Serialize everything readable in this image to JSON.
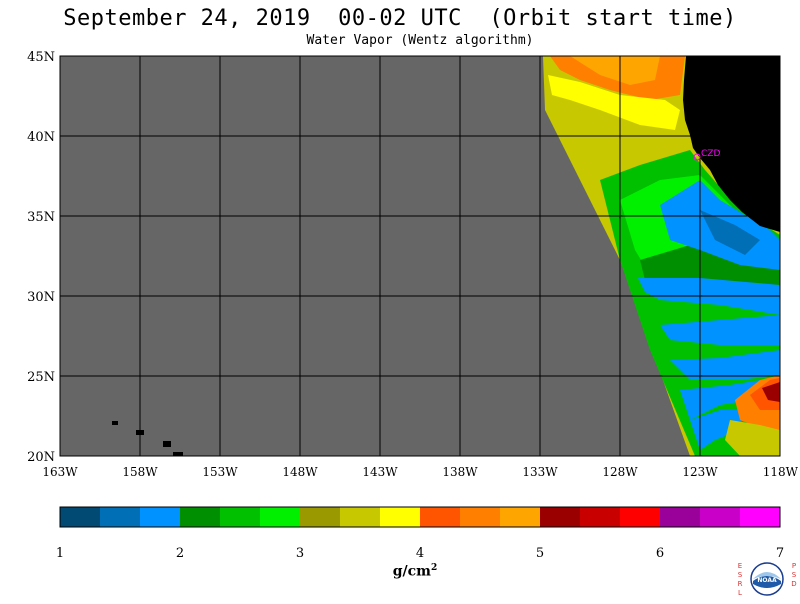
{
  "header": {
    "title": "September 24, 2019  00-02 UTC  (Orbit start time)",
    "subtitle": "Water Vapor (Wentz algorithm)"
  },
  "map": {
    "land_color": "#000000",
    "no_data_color": "#666666",
    "lat_labels": [
      "45N",
      "40N",
      "35N",
      "30N",
      "25N",
      "20N"
    ],
    "lon_labels": [
      "163W",
      "158W",
      "153W",
      "148W",
      "143W",
      "138W",
      "133W",
      "128W",
      "123W",
      "118W"
    ],
    "station_label": "CZD",
    "station_color": "#ff00ff"
  },
  "colorbar": {
    "colors": [
      "#004a73",
      "#006fb5",
      "#0093ff",
      "#008f00",
      "#00c000",
      "#00f000",
      "#9a9a00",
      "#c8c800",
      "#ffff00",
      "#ff5500",
      "#ff7f00",
      "#ffa500",
      "#9a0000",
      "#c80000",
      "#ff0000",
      "#9a009a",
      "#c800c8",
      "#ff00ff"
    ],
    "tick_labels": [
      "1",
      "2",
      "3",
      "4",
      "5",
      "6",
      "7"
    ],
    "units_base": "g/cm",
    "units_exp": "2"
  },
  "logo": {
    "left_letters": "ESRL",
    "right_letters": "PSD",
    "text": "NOAA"
  }
}
